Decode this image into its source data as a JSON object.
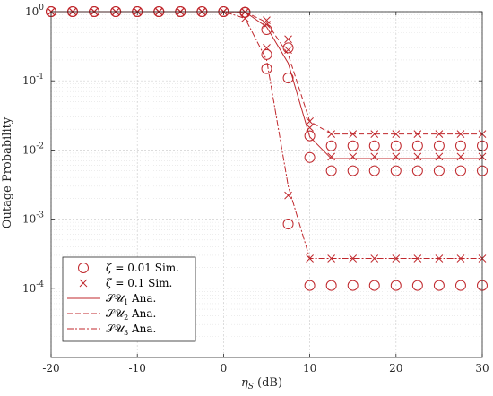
{
  "chart_data": {
    "type": "line",
    "xlabel": "η_S (dB)",
    "ylabel": "Outage Probability",
    "xlim": [
      -20,
      30
    ],
    "ylim": [
      1e-05,
      1
    ],
    "yscale": "log",
    "grid": "major and minor",
    "legend_position": "bottom-left",
    "x_ticks": [
      -20,
      -10,
      0,
      10,
      20,
      30
    ],
    "x_tick_labels": [
      "-20",
      "-10",
      "0",
      "10",
      "20",
      "30"
    ],
    "y_ticks": [
      0.0001,
      0.001,
      0.01,
      0.1,
      1
    ],
    "y_tick_labels": [
      {
        "base": "10",
        "exp": "-4"
      },
      {
        "base": "10",
        "exp": "-3"
      },
      {
        "base": "10",
        "exp": "-2"
      },
      {
        "base": "10",
        "exp": "-1"
      },
      {
        "base": "10",
        "exp": "0"
      }
    ],
    "color": "#c0282d",
    "sim_x": [
      -20,
      -17.5,
      -15,
      -12.5,
      -10,
      -7.5,
      -5,
      -2.5,
      0,
      2.5,
      5,
      7.5,
      10,
      12.5,
      15,
      17.5,
      20,
      22.5,
      25,
      27.5,
      30
    ],
    "ana_x": [
      -20,
      -17.5,
      -15,
      -12.5,
      -10,
      -7.5,
      -5,
      -2.5,
      0,
      2.5,
      5,
      7.5,
      10,
      12.5,
      15,
      17.5,
      20,
      22.5,
      25,
      27.5,
      30
    ],
    "series": [
      {
        "name": "SU1 Ana.",
        "dash": "solid",
        "values": [
          1,
          1,
          1,
          1,
          1,
          1,
          1,
          1,
          1,
          0.99,
          0.6,
          0.18,
          0.0155,
          0.0075,
          0.0075,
          0.0075,
          0.0075,
          0.0075,
          0.0075,
          0.0075,
          0.0075
        ]
      },
      {
        "name": "SU2 Ana.",
        "dash": "dashed",
        "values": [
          1,
          1,
          1,
          1,
          1,
          1,
          1,
          1,
          1,
          0.99,
          0.7,
          0.24,
          0.026,
          0.017,
          0.017,
          0.017,
          0.017,
          0.017,
          0.017,
          0.017,
          0.017
        ]
      },
      {
        "name": "SU3 Ana.",
        "dash": "dashdot",
        "values": [
          1,
          1,
          1,
          1,
          1,
          1,
          1,
          1,
          1,
          0.8,
          0.2,
          0.003,
          0.00027,
          0.00027,
          0.00027,
          0.00027,
          0.00027,
          0.00027,
          0.00027,
          0.00027,
          0.00027
        ]
      },
      {
        "name": "ζ = 0.01 Sim. (SU1)",
        "marker": "circle",
        "values": [
          1,
          1,
          1,
          1,
          1,
          1,
          1,
          1,
          1,
          0.98,
          0.15,
          0.11,
          0.0078,
          0.005,
          0.005,
          0.005,
          0.005,
          0.005,
          0.005,
          0.005,
          0.005
        ]
      },
      {
        "name": "ζ = 0.01 Sim. (SU2)",
        "marker": "circle",
        "values": [
          1,
          1,
          1,
          1,
          1,
          1,
          1,
          1,
          1,
          0.98,
          0.55,
          0.3,
          0.016,
          0.0115,
          0.0115,
          0.0115,
          0.0115,
          0.0115,
          0.0115,
          0.0115,
          0.0115
        ]
      },
      {
        "name": "ζ = 0.01 Sim. (SU3)",
        "marker": "circle",
        "values": [
          1,
          1,
          1,
          1,
          1,
          1,
          1,
          1,
          1,
          0.97,
          0.24,
          0.00085,
          0.00011,
          0.00011,
          0.00011,
          0.00011,
          0.00011,
          0.00011,
          0.00011,
          0.00011,
          0.00011
        ]
      },
      {
        "name": "ζ = 0.1 Sim. (SU1)",
        "marker": "x",
        "values": [
          1,
          1,
          1,
          1,
          1,
          1,
          1,
          1,
          1,
          0.99,
          0.65,
          0.28,
          0.021,
          0.008,
          0.008,
          0.008,
          0.008,
          0.008,
          0.008,
          0.008,
          0.008
        ]
      },
      {
        "name": "ζ = 0.1 Sim. (SU2)",
        "marker": "x",
        "values": [
          1,
          1,
          1,
          1,
          1,
          1,
          1,
          1,
          1,
          0.99,
          0.75,
          0.4,
          0.026,
          0.017,
          0.017,
          0.017,
          0.017,
          0.017,
          0.017,
          0.017,
          0.017
        ]
      },
      {
        "name": "ζ = 0.1 Sim. (SU3)",
        "marker": "x",
        "values": [
          1,
          1,
          1,
          1,
          1,
          1,
          1,
          1,
          1,
          0.8,
          0.3,
          0.0022,
          0.00027,
          0.00027,
          0.00027,
          0.00027,
          0.00027,
          0.00027,
          0.00027,
          0.00027,
          0.00027
        ]
      }
    ],
    "legend": {
      "sim1": {
        "sym": "ζ",
        "rest": " = 0.01 Sim."
      },
      "sim2": {
        "sym": "ζ",
        "rest": " = 0.1 Sim."
      },
      "ana1": {
        "sym": "𝒮𝒰",
        "sub": "1",
        "rest": " Ana."
      },
      "ana2": {
        "sym": "𝒮𝒰",
        "sub": "2",
        "rest": " Ana."
      },
      "ana3": {
        "sym": "𝒮𝒰",
        "sub": "3",
        "rest": " Ana."
      }
    }
  },
  "labels": {
    "xlabel_main": "η",
    "xlabel_sub": "S",
    "xlabel_unit": " (dB)",
    "ylabel": "Outage Probability"
  }
}
